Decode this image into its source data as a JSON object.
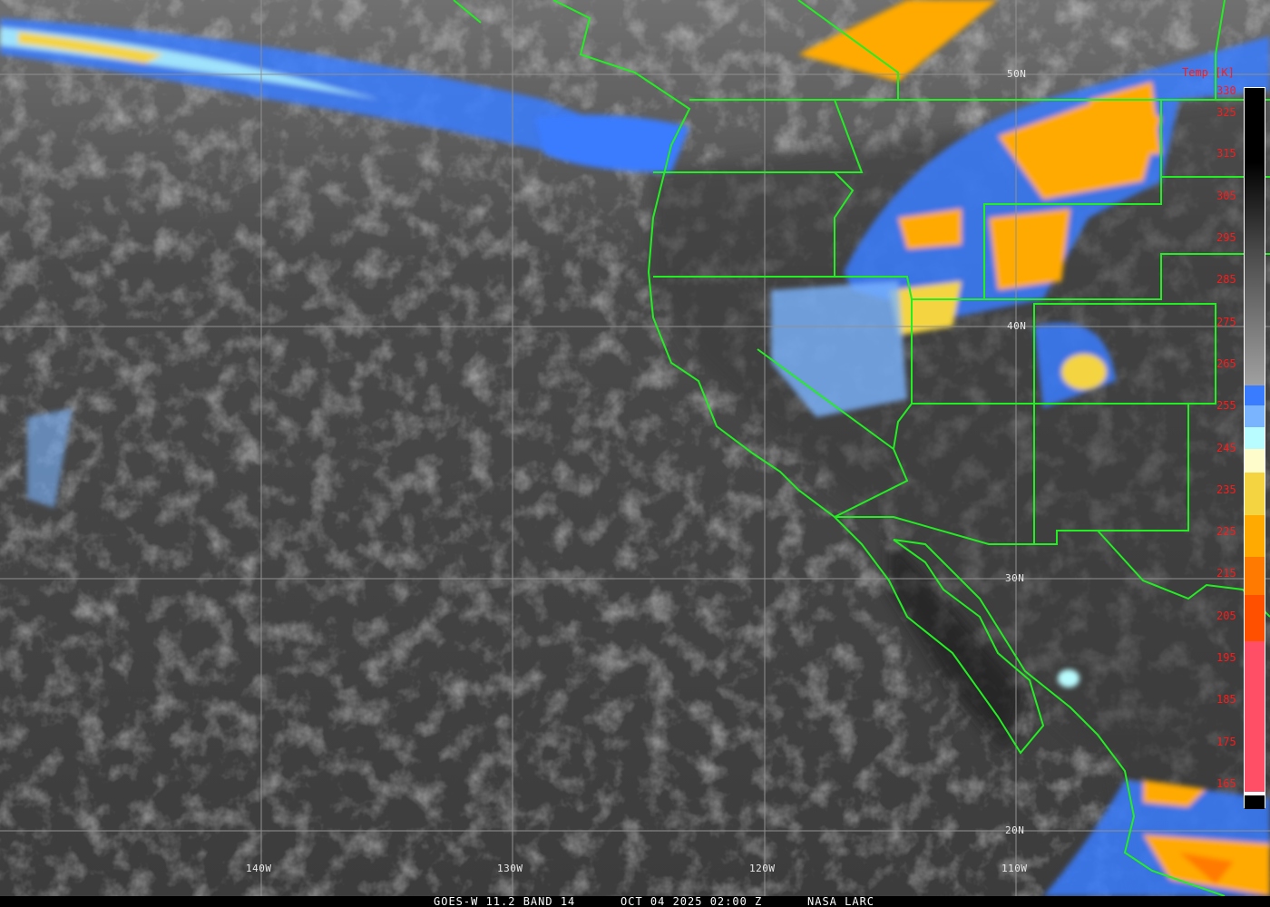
{
  "caption": {
    "satellite": "GOES-W 11.2 BAND 14",
    "datetime": "OCT 04 2025 02:00 Z",
    "source": "NASA LARC"
  },
  "grid": {
    "latitudes": [
      "50N",
      "40N",
      "30N",
      "20N"
    ],
    "longitudes": [
      "140W",
      "130W",
      "120W",
      "110W"
    ]
  },
  "colorbar": {
    "title": "Temp [K]",
    "labels": [
      "330",
      "325",
      "315",
      "305",
      "295",
      "285",
      "275",
      "265",
      "255",
      "245",
      "235",
      "225",
      "215",
      "205",
      "195",
      "185",
      "175",
      "165"
    ],
    "colors": {
      "warm": "#000000",
      "mid": "#a0a0a0",
      "blue": "#3a7cff",
      "light_blue": "#7ab4ff",
      "cyan": "#b8fcff",
      "pale_yellow": "#fffccc",
      "yellow": "#f4d440",
      "orange": "#ffaa00",
      "dark_orange": "#ff7a00",
      "red_orange": "#ff5000",
      "pink": "#ff4f66"
    }
  },
  "map_colors": {
    "borders": "#22ee22",
    "grid": "#909090"
  }
}
